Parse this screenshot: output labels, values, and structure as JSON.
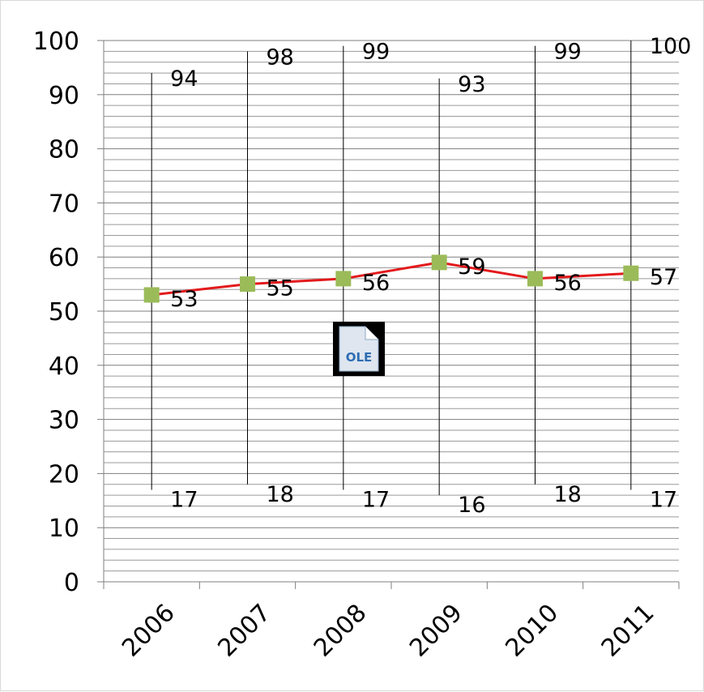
{
  "chart_data": {
    "type": "line",
    "title": "",
    "xlabel": "",
    "ylabel": "",
    "ylim": [
      0,
      100
    ],
    "y_ticks": [
      "0",
      "10",
      "20",
      "30",
      "40",
      "50",
      "60",
      "70",
      "80",
      "90",
      "100"
    ],
    "categories": [
      "2006",
      "2007",
      "2008",
      "2009",
      "2010",
      "2011"
    ],
    "series": [
      {
        "values": [
          53,
          55,
          56,
          59,
          56,
          57
        ],
        "color": "#e31a1c",
        "marker_color": "#9bbb59"
      }
    ],
    "high_low": {
      "high": [
        94,
        98,
        99,
        93,
        99,
        100
      ],
      "low": [
        17,
        18,
        17,
        16,
        18,
        17
      ]
    },
    "data_labels": {
      "mid": [
        "53",
        "55",
        "56",
        "59",
        "56",
        "57"
      ],
      "high": [
        "94",
        "98",
        "99",
        "93",
        "99",
        "100"
      ],
      "low": [
        "17",
        "18",
        "17",
        "16",
        "18",
        "17"
      ]
    },
    "grid": true,
    "minor_gridlines": true,
    "legend": "none",
    "x_tick_rotation": "-45",
    "embedded_object_icon": "ole-object-icon"
  }
}
